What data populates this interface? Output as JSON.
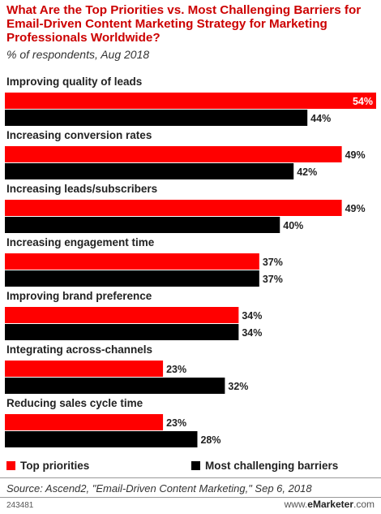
{
  "title": "What Are the Top Priorities vs. Most Challenging Barriers for Email-Driven Content Marketing Strategy for Marketing Professionals Worldwide?",
  "subtitle": "% of respondents, Aug 2018",
  "source": "Source: Ascend2, \"Email-Driven Content Marketing,\" Sep 6, 2018",
  "chart_id": "243481",
  "brand": {
    "prefix": "www.",
    "name": "eMarketer",
    "suffix": ".com"
  },
  "colors": {
    "priorities": "#ff0000",
    "barriers": "#000000",
    "title": "#cc0000"
  },
  "chart_data": {
    "type": "bar",
    "orientation": "horizontal",
    "categories": [
      "Improving quality of leads",
      "Increasing conversion rates",
      "Increasing leads/subscribers",
      "Increasing engagement time",
      "Improving brand preference",
      "Integrating across-channels",
      "Reducing sales cycle time"
    ],
    "series": [
      {
        "name": "Top priorities",
        "values": [
          54,
          49,
          49,
          37,
          34,
          23,
          23
        ]
      },
      {
        "name": "Most challenging barriers",
        "values": [
          44,
          42,
          40,
          37,
          34,
          32,
          28
        ]
      }
    ],
    "value_suffix": "%",
    "xlim": [
      0,
      54
    ],
    "legend_position": "bottom",
    "grid": false
  }
}
